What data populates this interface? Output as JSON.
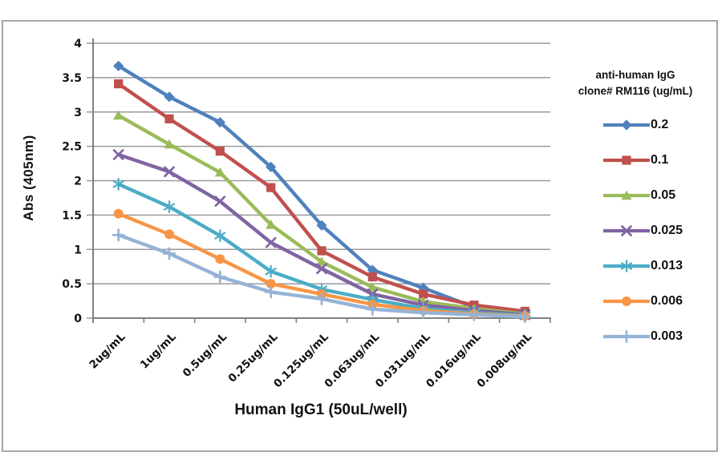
{
  "chart_data": {
    "type": "line",
    "title": "",
    "xlabel": "Human IgG1 (50uL/well)",
    "ylabel": "Abs (405nm)",
    "legend_title_lines": [
      "anti-human IgG",
      "clone# RM116 (ug/mL)"
    ],
    "legend_position": "right",
    "grid": true,
    "ylim": [
      0,
      4
    ],
    "y_ticks": [
      "0",
      "0.5",
      "1",
      "1.5",
      "2",
      "2.5",
      "3",
      "3.5",
      "4"
    ],
    "categories": [
      "2ug/mL",
      "1ug/mL",
      "0.5ug/mL",
      "0.25ug/mL",
      "0.125ug/mL",
      "0.063ug/mL",
      "0.031ug/mL",
      "0.016ug/mL",
      "0.008ug/mL"
    ],
    "series": [
      {
        "name": "0.2",
        "marker": "diamond",
        "color": "#4F81BD",
        "values": [
          3.67,
          3.22,
          2.85,
          2.2,
          1.35,
          0.7,
          0.44,
          0.16,
          0.09
        ]
      },
      {
        "name": "0.1",
        "marker": "square",
        "color": "#C0504D",
        "values": [
          3.41,
          2.9,
          2.43,
          1.9,
          0.98,
          0.6,
          0.35,
          0.19,
          0.1
        ]
      },
      {
        "name": "0.05",
        "marker": "triangle",
        "color": "#9BBB59",
        "values": [
          2.95,
          2.53,
          2.12,
          1.36,
          0.82,
          0.45,
          0.24,
          0.14,
          0.06
        ]
      },
      {
        "name": "0.025",
        "marker": "x",
        "color": "#8064A2",
        "values": [
          2.38,
          2.13,
          1.7,
          1.1,
          0.72,
          0.35,
          0.19,
          0.11,
          0.05
        ]
      },
      {
        "name": "0.013",
        "marker": "asterisk",
        "color": "#4BACC6",
        "values": [
          1.95,
          1.62,
          1.2,
          0.68,
          0.42,
          0.27,
          0.14,
          0.08,
          0.04
        ]
      },
      {
        "name": "0.006",
        "marker": "circle",
        "color": "#F79646",
        "values": [
          1.52,
          1.22,
          0.86,
          0.5,
          0.35,
          0.2,
          0.11,
          0.06,
          0.03
        ]
      },
      {
        "name": "0.003",
        "marker": "plus",
        "color": "#95B3D7",
        "values": [
          1.21,
          0.94,
          0.6,
          0.38,
          0.28,
          0.13,
          0.08,
          0.05,
          0.02
        ]
      }
    ],
    "axis_color": "#808080",
    "grid_color": "#9a9a9a"
  }
}
